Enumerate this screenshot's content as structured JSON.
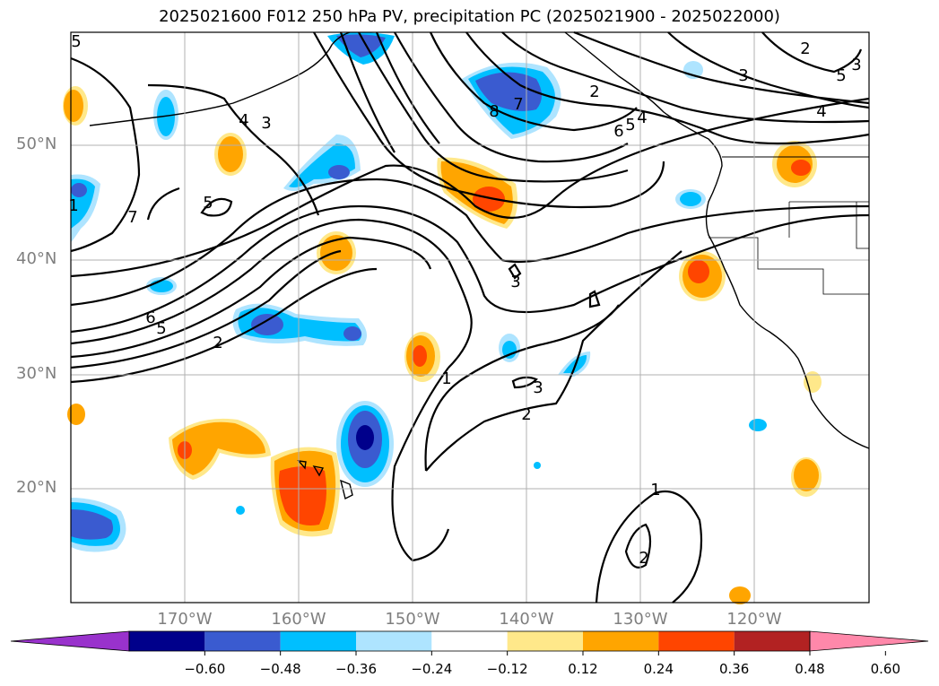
{
  "title": "2025021600 F012 250 hPa PV, precipitation PC (2025021900 - 2025022000)",
  "lat_ticks": [
    "50°N",
    "40°N",
    "30°N",
    "20°N"
  ],
  "lon_ticks": [
    "170°W",
    "160°W",
    "150°W",
    "140°W",
    "130°W",
    "120°W"
  ],
  "colorbar": {
    "levels": [
      "−0.60",
      "−0.48",
      "−0.36",
      "−0.24",
      "−0.12",
      "0.12",
      "0.24",
      "0.36",
      "0.48",
      "0.60"
    ],
    "colors": [
      "#9932cc",
      "#00008b",
      "#3a5bd0",
      "#00bfff",
      "#aee4ff",
      "#ffffff",
      "#ffe88a",
      "#ffa500",
      "#ff4500",
      "#b22222",
      "#ff88aa"
    ]
  },
  "contour_labels": [
    "5",
    "7",
    "5",
    "4",
    "3",
    "6",
    "5",
    "2",
    "2",
    "8",
    "7",
    "6",
    "5",
    "4",
    "2",
    "3",
    "4",
    "5",
    "3",
    "3",
    "1",
    "3",
    "2",
    "1",
    "2",
    "1"
  ],
  "extent": {
    "lon": [
      -180,
      -110
    ],
    "lat": [
      10,
      60
    ]
  }
}
